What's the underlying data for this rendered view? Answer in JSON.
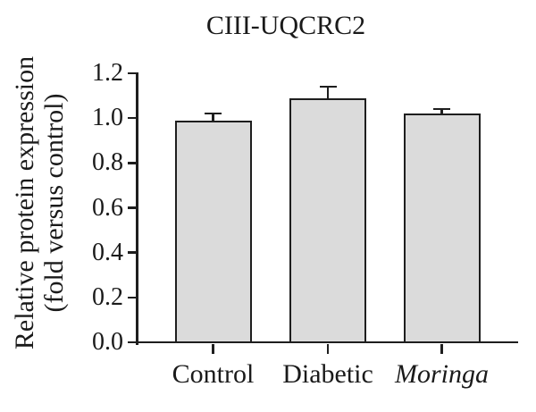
{
  "chart_data": {
    "type": "bar",
    "title": "CIII-UQCRC2",
    "ylabel_line1": "Relative protein expression",
    "ylabel_line2": "(fold versus control)",
    "xlabel": "",
    "categories": [
      "Control",
      "Diabetic",
      "Moringa"
    ],
    "italic_categories": [
      false,
      false,
      true
    ],
    "values": [
      0.99,
      1.09,
      1.02
    ],
    "errors": [
      0.03,
      0.05,
      0.02
    ],
    "error_style": "upper-half-sem",
    "ylim": [
      0,
      1.2
    ],
    "yticks": [
      0,
      0.2,
      0.4,
      0.6,
      0.8,
      1.0,
      1.2
    ],
    "ytick_labels": [
      "0.0",
      "0.2",
      "0.4",
      "0.6",
      "0.8",
      "1.0",
      "1.2"
    ],
    "grid": false,
    "legend": "none",
    "bar_fill_color": "#dbdbdb",
    "bar_border_color": "#1e1e1e",
    "axis_color": "#1e1e1e",
    "text_color": "#1a1a1a",
    "background_color": "#ffffff"
  }
}
